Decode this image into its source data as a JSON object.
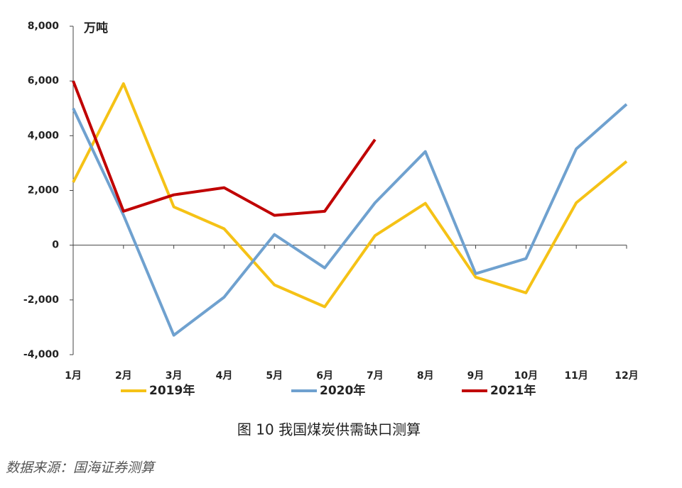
{
  "chart_data": {
    "type": "line",
    "y_axis_label": "万吨",
    "caption": "图 10 我国煤炭供需缺口测算",
    "source": "数据来源：国海证券测算",
    "categories": [
      "1月",
      "2月",
      "3月",
      "4月",
      "5月",
      "6月",
      "7月",
      "8月",
      "9月",
      "10月",
      "11月",
      "12月"
    ],
    "series": [
      {
        "name": "2019年",
        "color": "#f5c216",
        "values": [
          2300,
          5900,
          1400,
          600,
          -1450,
          -2250,
          350,
          1530,
          -1170,
          -1740,
          1550,
          3060
        ]
      },
      {
        "name": "2020年",
        "color": "#6fa1cf",
        "values": [
          5000,
          1100,
          -3290,
          -1900,
          390,
          -830,
          1550,
          3420,
          -1040,
          -490,
          3520,
          5150
        ]
      },
      {
        "name": "2021年",
        "color": "#c00000",
        "values": [
          6000,
          1240,
          1840,
          2100,
          1090,
          1240,
          3860,
          null,
          null,
          null,
          null,
          null
        ]
      }
    ],
    "ylim": [
      -4000,
      8000
    ],
    "yticks": [
      {
        "value": -4000,
        "label": "-4,000"
      },
      {
        "value": -2000,
        "label": "-2,000"
      },
      0,
      {
        "value": 2000,
        "label": "2,000"
      },
      {
        "value": 4000,
        "label": "4,000"
      },
      {
        "value": 6000,
        "label": "6,000"
      },
      {
        "value": 8000,
        "label": "8,000"
      }
    ],
    "legend": "bottom"
  }
}
